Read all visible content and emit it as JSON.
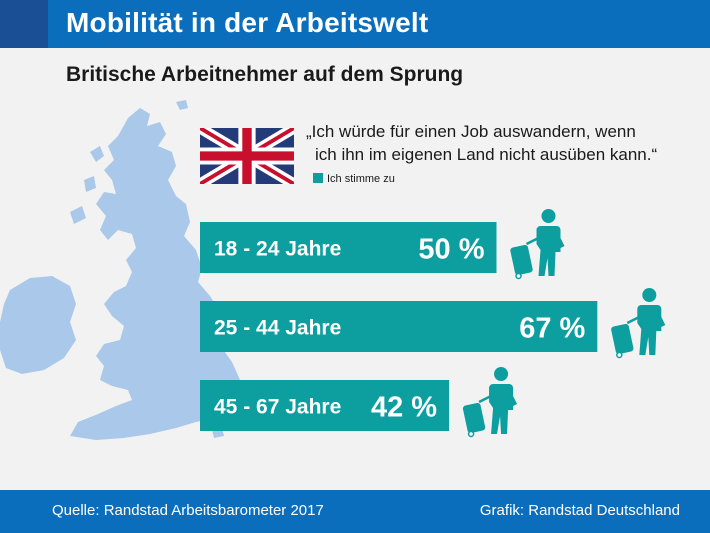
{
  "header": {
    "title": "Mobilität in der Arbeitswelt"
  },
  "subtitle": "Britische Arbeitnehmer auf dem Sprung",
  "quote": {
    "line1": "„Ich würde für einen Job auswandern, wenn",
    "line2": "ich ihn im eigenen Land nicht ausüben kann.“"
  },
  "legend": {
    "label": "Ich stimme zu"
  },
  "colors": {
    "header": "#0a6ebd",
    "bar": "#0d9ea0",
    "map": "#a9c8ea",
    "background": "#f2f2f2"
  },
  "icons": {
    "flag": "union-jack-icon",
    "traveler": "traveler-with-suitcase-icon"
  },
  "chart_data": {
    "type": "bar",
    "orientation": "horizontal",
    "categories": [
      "18 - 24 Jahre",
      "25 - 44 Jahre",
      "45 - 67 Jahre"
    ],
    "series": [
      {
        "name": "Ich stimme zu",
        "values": [
          50,
          67,
          42
        ],
        "labels": [
          "50 %",
          "67 %",
          "42 %"
        ]
      }
    ]
  },
  "footer": {
    "source": "Quelle: Randstad Arbeitsbarometer 2017",
    "credit": "Grafik: Randstad Deutschland"
  }
}
